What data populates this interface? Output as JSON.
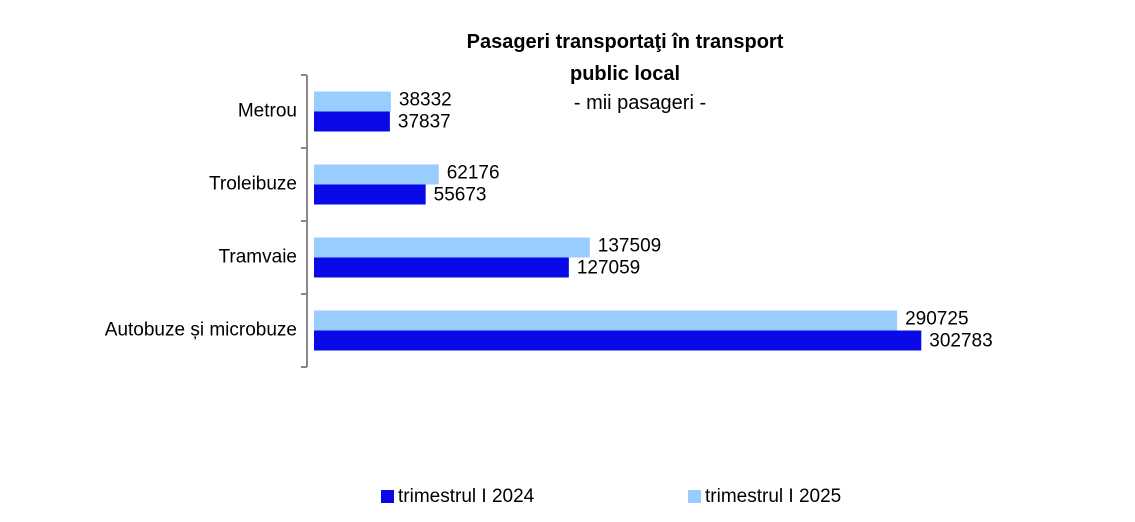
{
  "chart_data": {
    "type": "bar",
    "orientation": "horizontal",
    "title": "Pasageri transportaţi în transport public local",
    "subtitle": "- mii pasageri -",
    "categories": [
      "Metrou",
      "Troleibuze",
      "Tramvaie",
      "Autobuze și microbuze"
    ],
    "series": [
      {
        "name": "trimestrul I 2024",
        "color": "#0a0ae8",
        "values": [
          37837,
          55673,
          127059,
          302783
        ]
      },
      {
        "name": "trimestrul I 2025",
        "color": "#99ccff",
        "values": [
          38332,
          62176,
          137509,
          290725
        ]
      }
    ],
    "xlim": [
      0,
      350000
    ],
    "legend": "bottom"
  }
}
